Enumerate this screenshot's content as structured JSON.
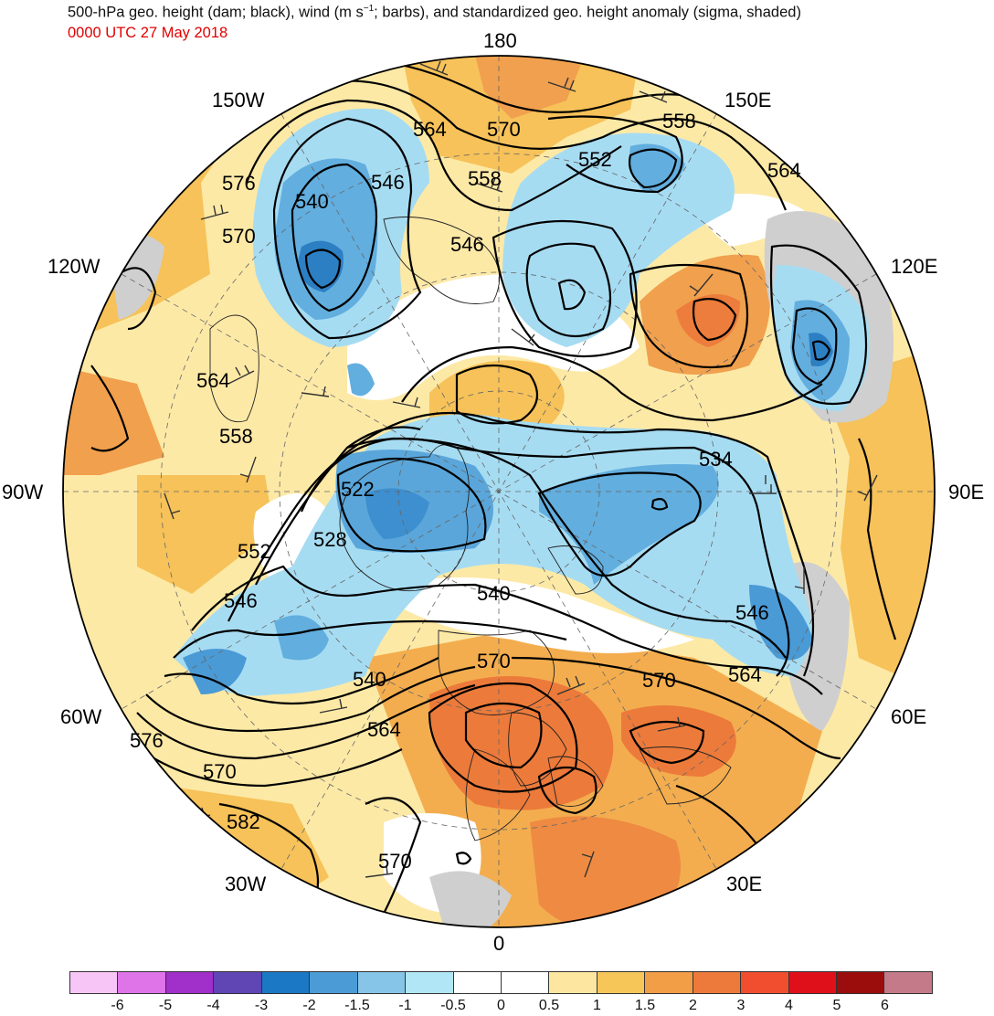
{
  "header": {
    "title_pre": "500-hPa geo. height (dam; black), wind (m s",
    "title_exp": "−1",
    "title_post": "; barbs), and standardized geo. height anomaly (sigma, shaded)",
    "subtitle": "0000 UTC 27 May 2018"
  },
  "map": {
    "projection": "north-polar-stereographic",
    "longitude_labels": {
      "top": "180",
      "top_left": "150W",
      "top_right": "150E",
      "upper_left": "120W",
      "upper_right": "120E",
      "left": "90W",
      "right": "90E",
      "lower_left": "60W",
      "lower_right": "60E",
      "bottom_left": "30W",
      "bottom_right": "30E",
      "bottom": "0"
    },
    "contour_labels": [
      "564",
      "570",
      "558",
      "552",
      "564",
      "576",
      "540",
      "546",
      "570",
      "546",
      "558",
      "564",
      "534",
      "558",
      "522",
      "528",
      "552",
      "546",
      "540",
      "546",
      "570",
      "570",
      "564",
      "540",
      "576",
      "564",
      "570",
      "582",
      "570"
    ]
  },
  "colorbar": {
    "colors": [
      "#f7c6f7",
      "#de74e8",
      "#a12fc9",
      "#6045b5",
      "#1b78c4",
      "#4b9cd6",
      "#86c5e7",
      "#b0e6f5",
      "#ffffff",
      "#ffffff",
      "#fde7a0",
      "#f6c659",
      "#f19e47",
      "#ed7a3a",
      "#f04e2f",
      "#e0101b",
      "#9b0d0d",
      "#c47a88"
    ],
    "labels": [
      "-6",
      "-5",
      "-4",
      "-3",
      "-2",
      "-1.5",
      "-1",
      "-0.5",
      "0",
      "0.5",
      "1",
      "1.5",
      "2",
      "3",
      "4",
      "5",
      "6"
    ]
  },
  "palette": {
    "neg_strong": "#3a88cc",
    "neg_mid": "#5aa8dc",
    "neg_light": "#9fd8f0",
    "pos_light": "#fbe19a",
    "pos_mid": "#f6bd55",
    "pos_strong": "#ef8a45",
    "gray_fill": "#cfcfcf"
  }
}
